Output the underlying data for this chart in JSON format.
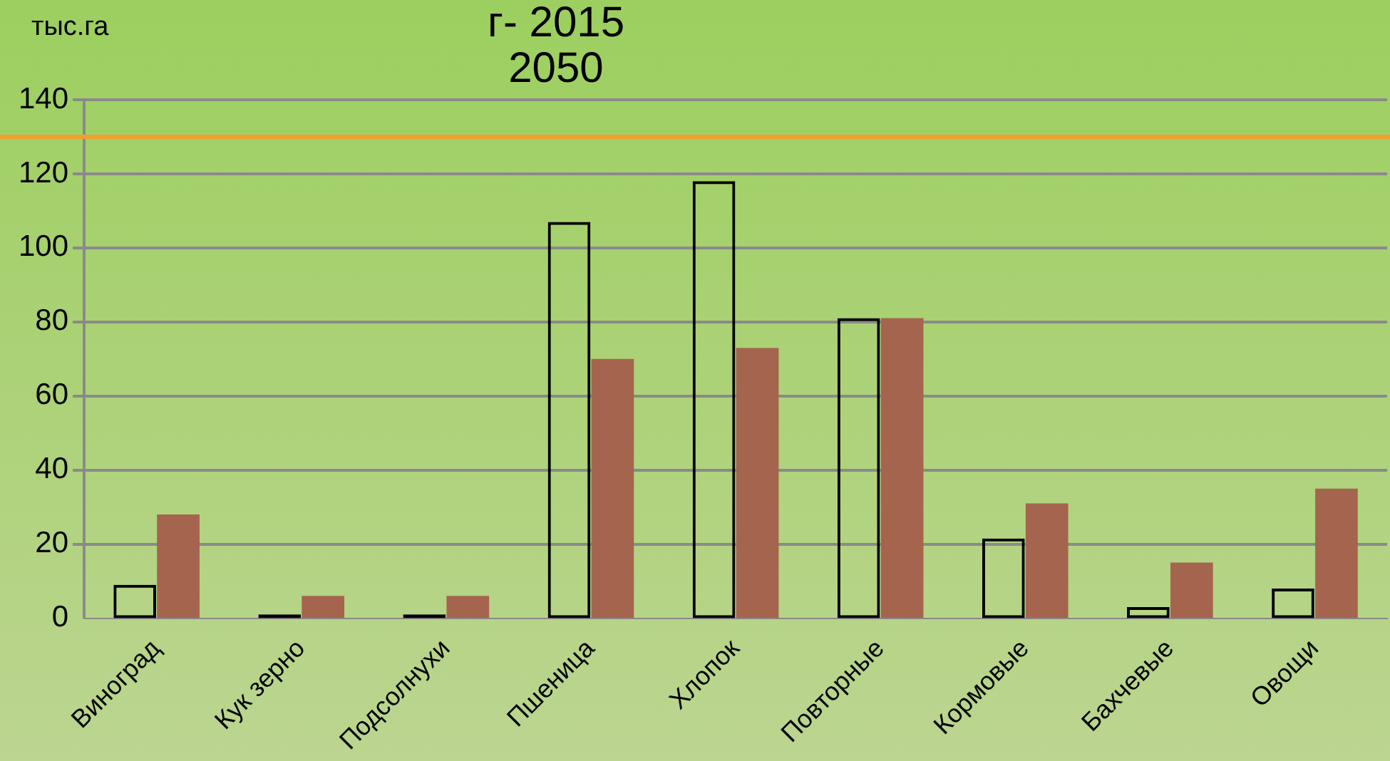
{
  "chart_data": {
    "type": "bar",
    "title": "г- 2015\n2050",
    "ylabel": "тыс.га",
    "categories": [
      "Виноград",
      "Кук зерно",
      "Подсолнухи",
      "Пшеница",
      "Хлопок",
      "Повторные",
      "Кормовые",
      "Бахчевые",
      "Овощи"
    ],
    "series": [
      {
        "color": "#000000",
        "values": [
          9,
          1,
          1,
          107,
          118,
          81,
          21.5,
          3,
          8
        ]
      },
      {
        "color": "#a5644e",
        "values": [
          28,
          6,
          6,
          70,
          73,
          81,
          31,
          15,
          35
        ]
      }
    ],
    "ylim": [
      0,
      140
    ],
    "yticks": [
      0,
      20,
      40,
      60,
      80,
      100,
      120,
      140
    ],
    "grid": "y",
    "legend": false,
    "ref_lines": [
      {
        "axis": "y",
        "value": 130,
        "color": "#f0a030"
      }
    ]
  }
}
